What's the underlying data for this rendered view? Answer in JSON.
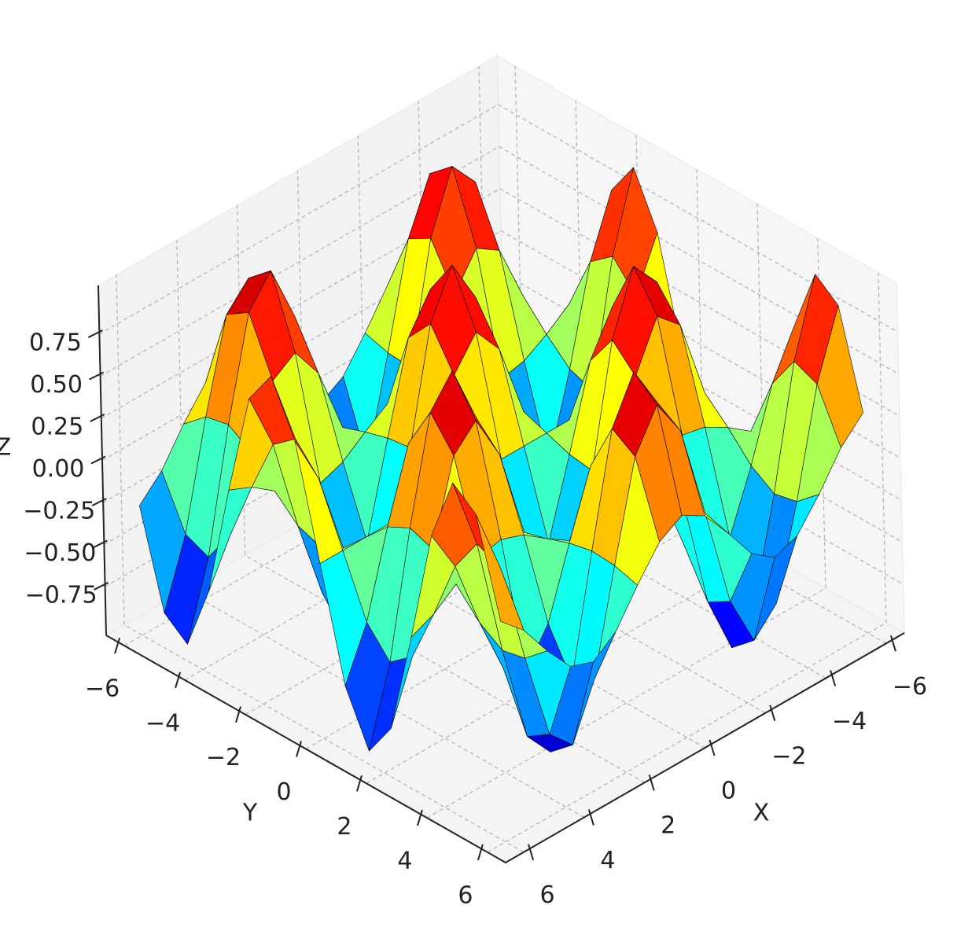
{
  "chart_data": {
    "type": "surface",
    "x": [
      -6,
      -5.25,
      -4.5,
      -3.75,
      -3,
      -2.25,
      -1.5,
      -0.75,
      0,
      0.75,
      1.5,
      2.25,
      3,
      3.75,
      4.5,
      5.25,
      6
    ],
    "y": [
      -6,
      -5.25,
      -4.5,
      -3.75,
      -3,
      -2.25,
      -1.5,
      -0.75,
      0,
      0.75,
      1.5,
      2.25,
      3,
      3.75,
      4.5,
      5.25,
      6
    ],
    "z": [
      [
        -0.27,
        -0.14,
        0.06,
        0.23,
        0.28,
        0.18,
        -0.02,
        -0.2,
        -0.28,
        -0.2,
        -0.02,
        0.18,
        0.28,
        0.23,
        0.06,
        -0.14,
        -0.27
      ],
      [
        -0.83,
        -0.44,
        0.18,
        0.71,
        0.85,
        0.54,
        -0.06,
        -0.63,
        -0.86,
        -0.63,
        -0.06,
        0.54,
        0.85,
        0.71,
        0.18,
        -0.44,
        -0.83
      ],
      [
        -0.94,
        -0.5,
        0.21,
        0.8,
        0.97,
        0.62,
        -0.07,
        -0.72,
        -0.98,
        -0.72,
        -0.07,
        0.62,
        0.97,
        0.8,
        0.21,
        -0.5,
        -0.94
      ],
      [
        -0.55,
        -0.29,
        0.12,
        0.47,
        0.56,
        0.36,
        -0.04,
        -0.42,
        -0.57,
        -0.42,
        -0.04,
        0.36,
        0.56,
        0.47,
        0.12,
        -0.29,
        -0.55
      ],
      [
        0.13,
        0.07,
        -0.03,
        -0.11,
        -0.14,
        -0.09,
        0.01,
        0.1,
        0.14,
        0.1,
        0.01,
        -0.09,
        -0.14,
        -0.11,
        -0.03,
        0.07,
        0.13
      ],
      [
        0.75,
        0.4,
        -0.16,
        -0.64,
        -0.77,
        -0.49,
        0.05,
        0.57,
        0.78,
        0.57,
        0.05,
        -0.49,
        -0.77,
        -0.64,
        -0.16,
        0.4,
        0.75
      ],
      [
        0.96,
        0.51,
        -0.21,
        -0.82,
        -0.99,
        -0.63,
        0.07,
        0.73,
        1,
        0.73,
        0.07,
        -0.63,
        -0.99,
        -0.82,
        -0.21,
        0.51,
        0.96
      ],
      [
        0.65,
        0.35,
        -0.14,
        -0.56,
        -0.67,
        -0.43,
        0.05,
        0.5,
        0.68,
        0.5,
        0.05,
        -0.43,
        -0.67,
        -0.56,
        -0.14,
        0.35,
        0.65
      ],
      [
        0,
        0,
        0,
        0,
        0,
        0,
        0,
        0,
        0,
        0,
        0,
        0,
        0,
        0,
        0,
        0,
        0
      ],
      [
        -0.65,
        -0.35,
        0.14,
        0.56,
        0.67,
        0.43,
        -0.05,
        -0.5,
        -0.68,
        -0.5,
        -0.05,
        0.43,
        0.67,
        0.56,
        0.14,
        -0.35,
        -0.65
      ],
      [
        -0.96,
        -0.51,
        0.21,
        0.82,
        0.99,
        0.63,
        -0.07,
        -0.73,
        -1,
        -0.73,
        -0.07,
        0.63,
        0.99,
        0.82,
        0.21,
        -0.51,
        -0.96
      ],
      [
        -0.75,
        -0.4,
        0.16,
        0.64,
        0.77,
        0.49,
        -0.05,
        -0.57,
        -0.78,
        -0.57,
        -0.05,
        0.49,
        0.77,
        0.64,
        0.16,
        -0.4,
        -0.75
      ],
      [
        -0.13,
        -0.07,
        0.03,
        0.11,
        0.14,
        0.09,
        -0.01,
        -0.1,
        -0.14,
        -0.1,
        -0.01,
        0.09,
        0.14,
        0.11,
        0.03,
        -0.07,
        -0.13
      ],
      [
        0.55,
        0.29,
        -0.12,
        -0.47,
        -0.56,
        -0.36,
        0.04,
        0.42,
        0.57,
        0.42,
        0.04,
        -0.36,
        -0.56,
        -0.47,
        -0.12,
        0.29,
        0.55
      ],
      [
        0.94,
        0.5,
        -0.21,
        -0.8,
        -0.97,
        -0.62,
        0.07,
        0.72,
        0.98,
        0.72,
        0.07,
        -0.62,
        -0.97,
        -0.8,
        -0.21,
        0.5,
        0.94
      ],
      [
        0.83,
        0.44,
        -0.18,
        -0.71,
        -0.85,
        -0.54,
        0.06,
        0.63,
        0.86,
        0.63,
        0.06,
        -0.54,
        -0.85,
        -0.71,
        -0.18,
        0.44,
        0.83
      ],
      [
        0.27,
        0.14,
        -0.06,
        -0.23,
        -0.28,
        -0.18,
        0.02,
        0.2,
        0.28,
        0.2,
        0.02,
        -0.18,
        -0.28,
        -0.23,
        -0.06,
        0.14,
        0.27
      ]
    ],
    "xlabel": "X",
    "ylabel": "Y",
    "zlabel": "Z",
    "xlim": [
      -6.6,
      6.6
    ],
    "ylim": [
      -6.6,
      6.6
    ],
    "zlim": [
      -1.04,
      1.04
    ],
    "xticks": [
      {
        "value": -6,
        "label": "−6"
      },
      {
        "value": -4,
        "label": "−4"
      },
      {
        "value": -2,
        "label": "−2"
      },
      0,
      2,
      4,
      6
    ],
    "yticks": [
      {
        "value": -6,
        "label": "−6"
      },
      {
        "value": -4,
        "label": "−4"
      },
      {
        "value": -2,
        "label": "−2"
      },
      0,
      2,
      4,
      6
    ],
    "zticks": [
      {
        "value": -0.75,
        "label": "−0.75"
      },
      {
        "value": -0.5,
        "label": "−0.50"
      },
      {
        "value": -0.25,
        "label": "−0.25"
      },
      {
        "value": 0,
        "label": "0.00"
      },
      0.25,
      {
        "value": 0.5,
        "label": "0.50"
      },
      0.75
    ],
    "colormap": "jet",
    "edgecolor": "#000000",
    "grid": true
  }
}
